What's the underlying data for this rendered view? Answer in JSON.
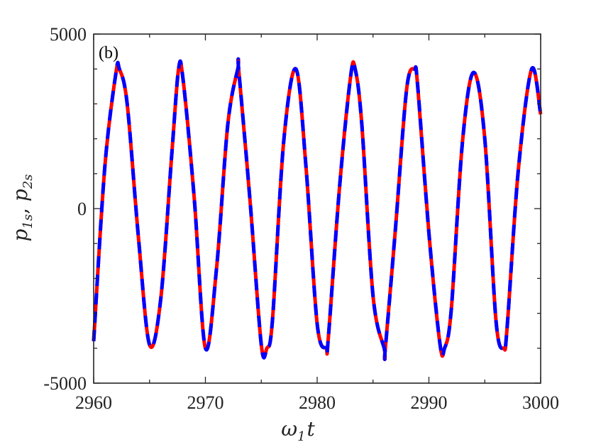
{
  "chart_data": {
    "type": "line",
    "panel_label": "(b)",
    "xlabel": {
      "base": "ω",
      "sub": "1",
      "rest": "t"
    },
    "ylabel": {
      "p1": "p",
      "p1_sub": "1s",
      "sep": ", ",
      "p2": "p",
      "p2_sub": "2s"
    },
    "xlim": [
      2960,
      3000
    ],
    "ylim": [
      -5000,
      5000
    ],
    "xticks": [
      2960,
      2970,
      2980,
      2990,
      3000
    ],
    "yticks": [
      -5000,
      0,
      5000
    ],
    "xtick_labels": [
      "2960",
      "2970",
      "2980",
      "2990",
      "3000"
    ],
    "ytick_labels": [
      "-5000",
      "0",
      "5000"
    ],
    "grid": false,
    "series": [
      {
        "color": "#ff0000",
        "style": "solid",
        "x": [
          2960,
          2961,
          2962,
          2962.3,
          2963,
          2964,
          2965,
          2966,
          2967,
          2967.6,
          2968,
          2969,
          2970,
          2971,
          2972,
          2972.9,
          2973,
          2974,
          2975,
          2975.5,
          2976,
          2977,
          2978.1,
          2979,
          2980,
          2980.8,
          2981,
          2982,
          2983,
          2983.4,
          2984,
          2985,
          2986,
          2986.1,
          2987,
          2988,
          2988.7,
          2989,
          2990,
          2991,
          2991.4,
          2992,
          2993,
          2994,
          2995,
          2996,
          2996.7,
          2997,
          2998,
          2999.2,
          3000
        ],
        "y": [
          -3800,
          1200,
          3900,
          4000,
          3000,
          -800,
          -3900,
          -2600,
          1600,
          4000,
          3700,
          300,
          -4000,
          -1700,
          2400,
          4000,
          3900,
          200,
          -3900,
          -4000,
          -3200,
          1900,
          4000,
          1200,
          -3300,
          -4000,
          -3700,
          600,
          3800,
          4000,
          2400,
          -2500,
          -4000,
          -4000,
          -600,
          3400,
          4000,
          3500,
          -700,
          -3900,
          -4000,
          -2900,
          1900,
          3900,
          2000,
          -3200,
          -4000,
          -3400,
          1100,
          4000,
          2700
        ]
      },
      {
        "color": "#0000ff",
        "style": "dashed",
        "x": [
          2960,
          2961,
          2962,
          2962.3,
          2963,
          2964,
          2965,
          2966,
          2967,
          2967.6,
          2968,
          2969,
          2970,
          2971,
          2972,
          2972.9,
          2973,
          2974,
          2975,
          2975.5,
          2976,
          2977,
          2978.1,
          2979,
          2980,
          2980.8,
          2981,
          2982,
          2983,
          2983.4,
          2984,
          2985,
          2986,
          2986.1,
          2987,
          2988,
          2988.7,
          2989,
          2990,
          2991,
          2991.4,
          2992,
          2993,
          2994,
          2995,
          2996,
          2996.7,
          2997,
          2998,
          2999.2,
          3000
        ],
        "y": [
          -3800,
          1200,
          3900,
          4000,
          3000,
          -800,
          -3900,
          -2600,
          1600,
          4000,
          3700,
          300,
          -4000,
          -1700,
          2400,
          4000,
          3900,
          200,
          -3900,
          -4000,
          -3200,
          1900,
          4000,
          1200,
          -3300,
          -4000,
          -3700,
          600,
          3800,
          4000,
          2400,
          -2500,
          -4000,
          -4000,
          -600,
          3400,
          4000,
          3500,
          -700,
          -3900,
          -4000,
          -2900,
          1900,
          3900,
          2000,
          -3200,
          -4000,
          -3400,
          1100,
          4000,
          2700
        ]
      }
    ]
  }
}
